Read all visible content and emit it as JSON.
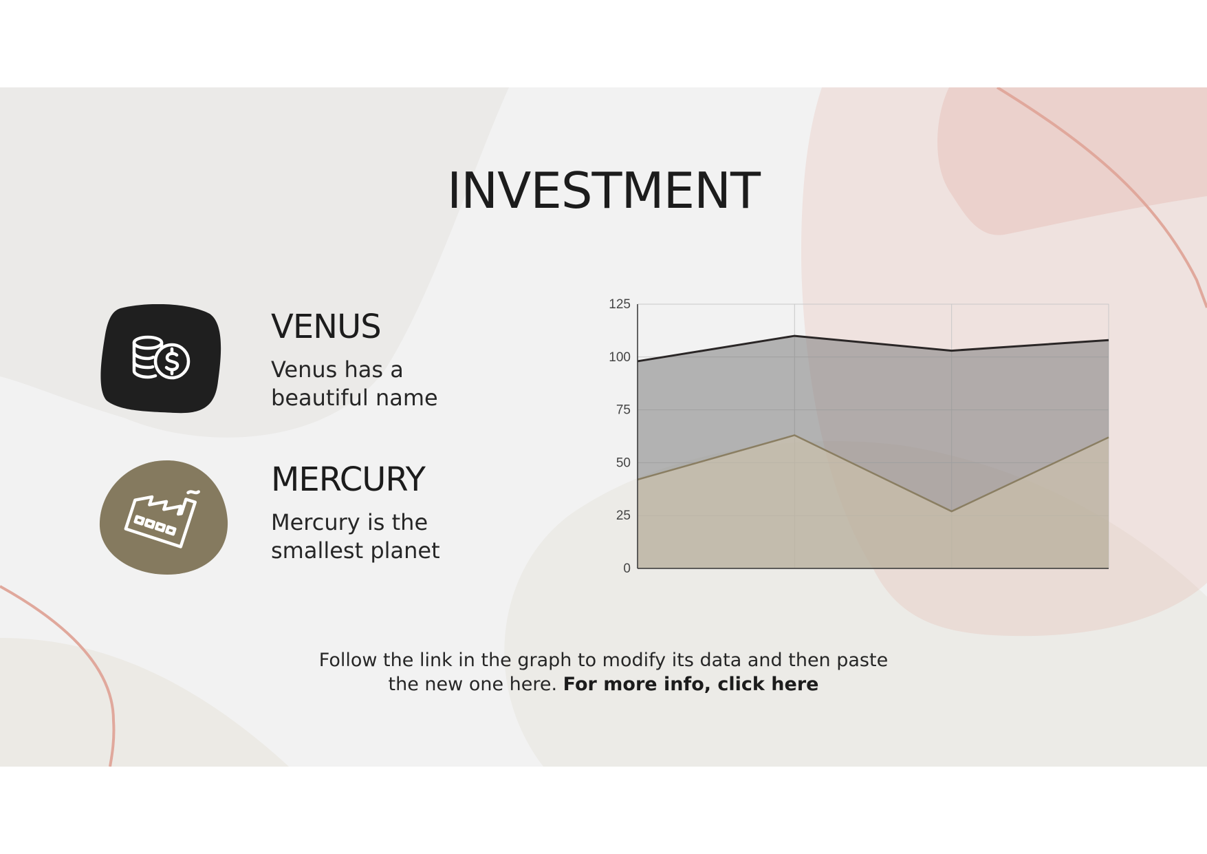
{
  "title": "INVESTMENT",
  "items": [
    {
      "heading": "VENUS",
      "description": "Venus has a beautiful name",
      "icon": "coins-dollar-icon",
      "color": "#1f1f1f"
    },
    {
      "heading": "MERCURY",
      "description": "Mercury is the smallest planet",
      "icon": "factory-icon",
      "color": "#857a5f"
    }
  ],
  "footer": {
    "text": "Follow the link in the graph to modify its data and then paste the new one here.",
    "link": "For more info, click here"
  },
  "colors": {
    "accent_dark": "#1f1f1f",
    "accent_olive": "#857a5f",
    "blush": "#e3a79c"
  },
  "chart_data": {
    "type": "area",
    "categories": [
      "",
      "",
      "",
      ""
    ],
    "series": [
      {
        "values": [
          98,
          110,
          103,
          108
        ],
        "color": "#7d7d7d"
      },
      {
        "values": [
          42,
          63,
          27,
          62
        ],
        "color": "#d4c7ad"
      }
    ],
    "ylim": [
      0,
      125
    ],
    "yticks": [
      "0",
      "25",
      "50",
      "75",
      "100",
      "125"
    ],
    "grid": true,
    "legend": "none"
  }
}
